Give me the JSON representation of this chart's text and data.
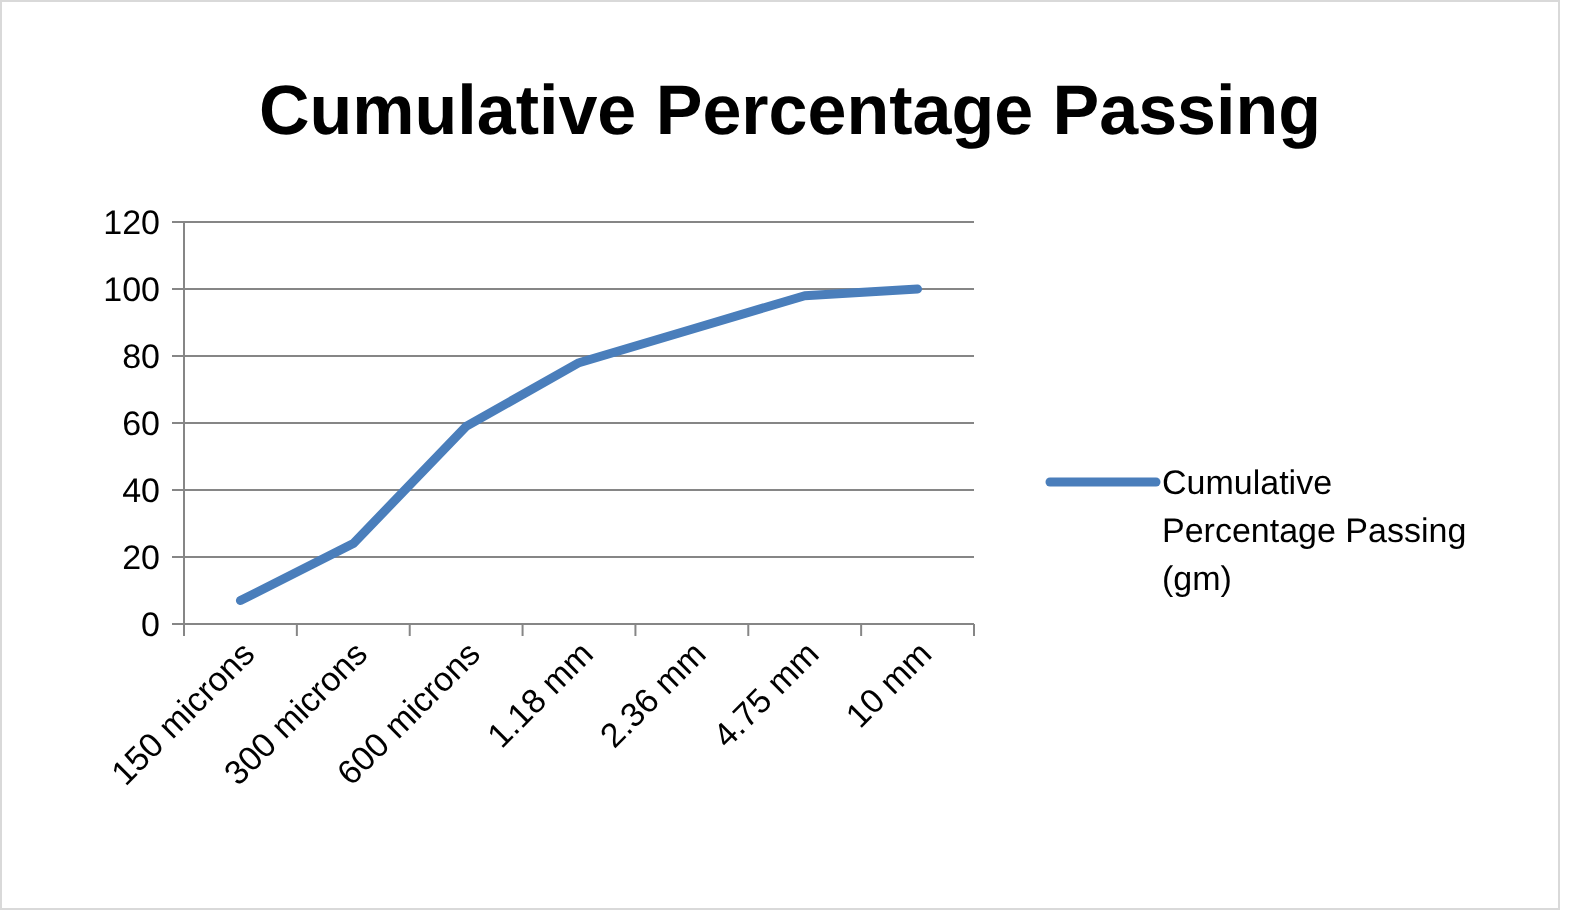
{
  "chart_data": {
    "type": "line",
    "title": "Cumulative Percentage Passing",
    "categories": [
      "150 microns",
      "300 microns",
      "600 microns",
      "1.18 mm",
      "2.36 mm",
      "4.75 mm",
      "10 mm"
    ],
    "series": [
      {
        "name": "Cumulative Percentage Passing (gm)",
        "color": "#4a7ebb",
        "values": [
          7,
          24,
          59,
          78,
          88,
          98,
          100
        ]
      }
    ],
    "ylim": [
      0,
      120
    ],
    "yticks": [
      0,
      20,
      40,
      60,
      80,
      100,
      120
    ],
    "grid": "y",
    "legend": "right",
    "marker": "none",
    "line_style": "solid"
  }
}
